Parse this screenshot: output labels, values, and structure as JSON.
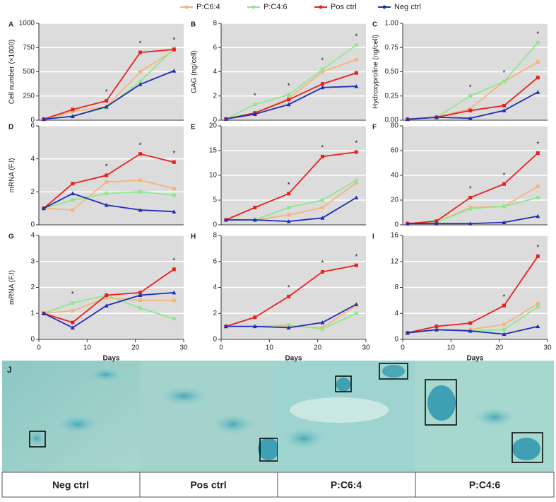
{
  "legend": [
    {
      "name": "P:C6:4",
      "color": "#f5b57a"
    },
    {
      "name": "P:C4:6",
      "color": "#8fe88f"
    },
    {
      "name": "Pos ctrl",
      "color": "#e8211f"
    },
    {
      "name": "Neg ctrl",
      "color": "#1f2db5"
    }
  ],
  "x_label": "Days",
  "chart_data": [
    {
      "type": "line",
      "panel": "A",
      "y_label": "Cell number (×1000)",
      "x": [
        1,
        7,
        14,
        21,
        28
      ],
      "xlim": [
        0,
        30
      ],
      "ylim": [
        0,
        1000
      ],
      "yticks": [
        0,
        250,
        500,
        750,
        1000
      ],
      "sig_label": "*",
      "sig_days": [
        14,
        21,
        28
      ],
      "series": [
        {
          "values": [
            10,
            90,
            140,
            500,
            720
          ]
        },
        {
          "values": [
            10,
            40,
            130,
            400,
            740
          ]
        },
        {
          "values": [
            10,
            110,
            200,
            700,
            730
          ]
        },
        {
          "values": [
            10,
            40,
            140,
            370,
            510
          ]
        }
      ]
    },
    {
      "type": "line",
      "panel": "B",
      "y_label": "GAG (ng/cell)",
      "x": [
        1,
        7,
        14,
        21,
        28
      ],
      "xlim": [
        0,
        30
      ],
      "ylim": [
        0,
        8
      ],
      "yticks": [
        0,
        2,
        4,
        6,
        8
      ],
      "sig_label": "*",
      "sig_days": [
        7,
        14,
        21,
        28
      ],
      "series": [
        {
          "values": [
            0.1,
            0.6,
            1.8,
            4.0,
            5.0
          ]
        },
        {
          "values": [
            0.1,
            1.3,
            2.1,
            4.2,
            6.2
          ]
        },
        {
          "values": [
            0.1,
            0.6,
            1.7,
            3.0,
            3.9
          ]
        },
        {
          "values": [
            0.1,
            0.5,
            1.3,
            2.7,
            2.8
          ]
        }
      ]
    },
    {
      "type": "line",
      "panel": "C",
      "y_label": "Hydroxyproline (ng/cell)",
      "x": [
        1,
        7,
        14,
        21,
        28
      ],
      "xlim": [
        0,
        30
      ],
      "ylim": [
        0,
        1
      ],
      "yticks": [
        {
          "value": 0,
          "label": "0.00"
        },
        {
          "value": 0.25,
          "label": "0.25"
        },
        {
          "value": 0.5,
          "label": "0.50"
        },
        {
          "value": 0.75,
          "label": "0.75"
        },
        {
          "value": 1,
          "label": "1.00"
        }
      ],
      "sig_label": "*",
      "sig_days": [
        14,
        21,
        28
      ],
      "series": [
        {
          "values": [
            0.01,
            0.03,
            0.12,
            0.4,
            0.6
          ]
        },
        {
          "values": [
            0.01,
            0.03,
            0.25,
            0.4,
            0.8
          ]
        },
        {
          "values": [
            0.01,
            0.03,
            0.1,
            0.15,
            0.44
          ]
        },
        {
          "values": [
            0.01,
            0.03,
            0.02,
            0.1,
            0.29
          ]
        }
      ]
    },
    {
      "type": "line",
      "panel": "D",
      "y_label": "mRNA (F.I)",
      "x": [
        1,
        7,
        14,
        21,
        28
      ],
      "xlim": [
        0,
        30
      ],
      "ylim": [
        0,
        6
      ],
      "yticks": [
        0,
        2,
        4,
        6
      ],
      "sig_label": "*",
      "sig_days": [
        14,
        21,
        28
      ],
      "series": [
        {
          "values": [
            1,
            0.9,
            2.6,
            2.7,
            2.2
          ]
        },
        {
          "values": [
            1,
            1.5,
            1.9,
            2.0,
            1.8
          ]
        },
        {
          "values": [
            1,
            2.5,
            3.0,
            4.3,
            3.8
          ]
        },
        {
          "values": [
            1,
            1.9,
            1.2,
            0.9,
            0.8
          ]
        }
      ]
    },
    {
      "type": "line",
      "panel": "E",
      "x": [
        1,
        7,
        14,
        21,
        28
      ],
      "xlim": [
        0,
        30
      ],
      "ylim": [
        0,
        20
      ],
      "yticks": [
        0,
        5,
        10,
        15,
        20
      ],
      "sig_label": "*",
      "sig_days": [
        14,
        21,
        28
      ],
      "series": [
        {
          "values": [
            1,
            1,
            2,
            3.5,
            8.5
          ]
        },
        {
          "values": [
            1,
            1,
            3.5,
            5,
            9
          ]
        },
        {
          "values": [
            1,
            3.5,
            6.3,
            13.8,
            14.7
          ]
        },
        {
          "values": [
            1,
            1,
            0.7,
            1.4,
            5.5
          ]
        }
      ]
    },
    {
      "type": "line",
      "panel": "F",
      "x": [
        1,
        7,
        14,
        21,
        28
      ],
      "xlim": [
        0,
        30
      ],
      "ylim": [
        0,
        80
      ],
      "yticks": [
        0,
        20,
        40,
        60,
        80
      ],
      "sig_label": "*",
      "sig_days": [
        14,
        21,
        28
      ],
      "series": [
        {
          "values": [
            1,
            2,
            14,
            15,
            31
          ]
        },
        {
          "values": [
            1,
            2,
            13,
            15,
            22
          ]
        },
        {
          "values": [
            1,
            3,
            22,
            33,
            58
          ]
        },
        {
          "values": [
            1,
            1,
            1,
            2,
            7
          ]
        }
      ]
    },
    {
      "type": "line",
      "panel": "G",
      "y_label": "mRNA (F.I)",
      "x": [
        1,
        7,
        14,
        21,
        28
      ],
      "xlim": [
        0,
        30
      ],
      "xticks": [
        0,
        10,
        20,
        30
      ],
      "ylim": [
        0,
        4
      ],
      "yticks": [
        0,
        1,
        2,
        3,
        4
      ],
      "sig_label": "*",
      "sig_days": [
        7,
        28
      ],
      "series": [
        {
          "values": [
            1,
            1.1,
            1.6,
            1.5,
            1.5
          ]
        },
        {
          "values": [
            1,
            1.4,
            1.7,
            1.2,
            0.8
          ]
        },
        {
          "values": [
            1,
            0.65,
            1.7,
            1.8,
            2.7
          ]
        },
        {
          "values": [
            1,
            0.45,
            1.3,
            1.7,
            1.8
          ]
        }
      ]
    },
    {
      "type": "line",
      "panel": "H",
      "x": [
        1,
        7,
        14,
        21,
        28
      ],
      "xlim": [
        0,
        30
      ],
      "xticks": [
        0,
        10,
        20,
        30
      ],
      "ylim": [
        0,
        8
      ],
      "yticks": [
        0,
        2,
        4,
        6,
        8
      ],
      "sig_label": "*",
      "sig_days": [
        14,
        21,
        28
      ],
      "series": [
        {
          "values": [
            1,
            1,
            1,
            0.9,
            2.6
          ]
        },
        {
          "values": [
            1,
            1,
            1.1,
            0.8,
            2.0
          ]
        },
        {
          "values": [
            1,
            1.7,
            3.3,
            5.2,
            5.7
          ]
        },
        {
          "values": [
            1,
            1,
            0.9,
            1.3,
            2.7
          ]
        }
      ]
    },
    {
      "type": "line",
      "panel": "I",
      "x": [
        1,
        7,
        14,
        21,
        28
      ],
      "xlim": [
        0,
        30
      ],
      "xticks": [
        0,
        10,
        20,
        30
      ],
      "ylim": [
        0,
        16
      ],
      "yticks": [
        0,
        4,
        8,
        12,
        16
      ],
      "sig_label": "*",
      "sig_days": [
        21,
        28
      ],
      "series": [
        {
          "values": [
            1,
            1.5,
            1.5,
            2.3,
            5.5
          ]
        },
        {
          "values": [
            1,
            1.5,
            1.3,
            1.5,
            5.0
          ]
        },
        {
          "values": [
            1,
            2,
            2.5,
            5.2,
            12.8
          ]
        },
        {
          "values": [
            1,
            1.5,
            1.3,
            0.8,
            2
          ]
        }
      ]
    }
  ],
  "images": {
    "panel": "J",
    "labels": [
      "Neg ctrl",
      "Pos ctrl",
      "P:C6:4",
      "P:C4:6"
    ]
  }
}
